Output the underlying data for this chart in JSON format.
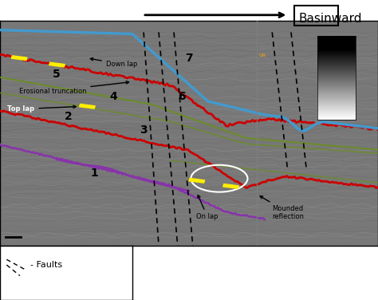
{
  "title": "Basinward",
  "bg_color": "#808080",
  "seismic_bg": "#787878",
  "labels": {
    "down_lap": "Down lap",
    "erosional": "Erosional truncation",
    "top_lap": "Top lap",
    "on_lap": "On lap",
    "mounded": "Mounded\nreflection",
    "well_a": "Well A",
    "faults_legend": "- Faults"
  },
  "numbers": [
    "1",
    "2",
    "3",
    "4",
    "5",
    "6",
    "7"
  ],
  "arrow_color": "#000000",
  "line_colors": {
    "red": "#cc0000",
    "blue": "#4499cc",
    "purple": "#8833aa",
    "green_olive": "#6b8e23",
    "yellow": "#ffee00"
  }
}
